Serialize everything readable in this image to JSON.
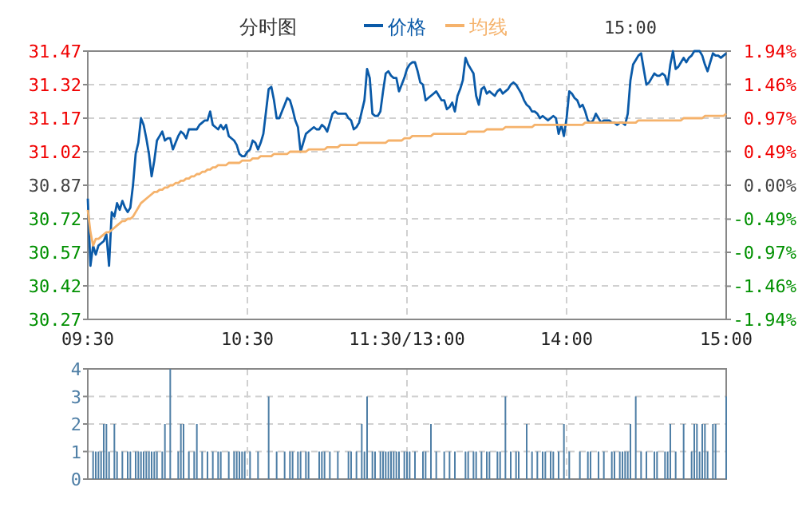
{
  "chart_data": [
    {
      "type": "line",
      "title": "分时图",
      "annotations": [
        "15:00"
      ],
      "legend": "top",
      "grid": true,
      "categories": [
        "09:30",
        null,
        null,
        null,
        null,
        null,
        null,
        null,
        null,
        null,
        null,
        null,
        null,
        null,
        null,
        null,
        null,
        null,
        null,
        null,
        null,
        null,
        null,
        null,
        null,
        null,
        null,
        null,
        null,
        null,
        null,
        null,
        null,
        null,
        null,
        null,
        null,
        null,
        null,
        null,
        null,
        null,
        null,
        null,
        null,
        null,
        null,
        null,
        null,
        null,
        null,
        null,
        null,
        null,
        null,
        null,
        null,
        null,
        null,
        null,
        "10:30",
        null,
        null,
        null,
        null,
        null,
        null,
        null,
        null,
        null,
        null,
        null,
        null,
        null,
        null,
        null,
        null,
        null,
        null,
        null,
        null,
        null,
        null,
        null,
        null,
        null,
        null,
        null,
        null,
        null,
        null,
        null,
        null,
        null,
        null,
        null,
        null,
        null,
        null,
        null,
        null,
        null,
        null,
        null,
        null,
        null,
        null,
        null,
        null,
        null,
        null,
        null,
        null,
        null,
        null,
        null,
        null,
        null,
        null,
        null,
        "11:30/13:00",
        null,
        null,
        null,
        null,
        null,
        null,
        null,
        null,
        null,
        null,
        null,
        null,
        null,
        null,
        null,
        null,
        null,
        null,
        null,
        null,
        null,
        null,
        null,
        null,
        null,
        null,
        null,
        null,
        null,
        null,
        null,
        null,
        null,
        null,
        null,
        null,
        null,
        null,
        null,
        null,
        null,
        null,
        null,
        null,
        null,
        null,
        null,
        null,
        null,
        null,
        null,
        null,
        null,
        null,
        null,
        null,
        null,
        null,
        null,
        "14:00",
        null,
        null,
        null,
        null,
        null,
        null,
        null,
        null,
        null,
        null,
        null,
        null,
        null,
        null,
        null,
        null,
        null,
        null,
        null,
        null,
        null,
        null,
        null,
        null,
        null,
        null,
        null,
        null,
        null,
        null,
        null,
        null,
        null,
        null,
        null,
        null,
        null,
        null,
        null,
        null,
        null,
        null,
        null,
        null,
        null,
        null,
        null,
        null,
        null,
        null,
        null,
        null,
        null,
        null,
        null,
        null,
        null,
        null,
        null,
        "15:00"
      ],
      "ylim": [
        30.27,
        31.47
      ],
      "yticks": [
        30.27,
        30.42,
        30.57,
        30.72,
        30.87,
        31.02,
        31.17,
        31.32,
        31.47
      ],
      "y2lim": [
        -1.94,
        1.94
      ],
      "y2ticks": [
        {
          "value": -1.94,
          "label": "-1.94%"
        },
        {
          "value": -1.46,
          "label": "-1.46%"
        },
        {
          "value": -0.97,
          "label": "-0.97%"
        },
        {
          "value": -0.49,
          "label": "-0.49%"
        },
        {
          "value": 0,
          "label": "0.00%"
        },
        {
          "value": 0.49,
          "label": "0.49%"
        },
        {
          "value": 0.97,
          "label": "0.97%"
        },
        {
          "value": 1.46,
          "label": "1.46%"
        },
        {
          "value": 1.94,
          "label": "1.94%"
        }
      ],
      "series": [
        {
          "name": "价格",
          "color": "#0a5aa8",
          "values": [
            30.81,
            30.51,
            30.6,
            30.56,
            30.6,
            30.61,
            30.62,
            30.65,
            30.51,
            30.75,
            30.73,
            30.79,
            30.76,
            30.8,
            30.77,
            30.75,
            30.77,
            30.87,
            31.01,
            31.06,
            31.17,
            31.14,
            31.08,
            31.01,
            30.91,
            30.98,
            31.07,
            31.09,
            31.11,
            31.07,
            31.08,
            31.08,
            31.03,
            31.06,
            31.09,
            31.11,
            31.1,
            31.08,
            31.12,
            31.12,
            31.12,
            31.12,
            31.14,
            31.15,
            31.16,
            31.16,
            31.2,
            31.14,
            31.13,
            31.12,
            31.14,
            31.12,
            31.14,
            31.09,
            31.08,
            31.07,
            31.05,
            31.01,
            31.0,
            31.0,
            31.02,
            31.03,
            31.07,
            31.06,
            31.03,
            31.06,
            31.1,
            31.2,
            31.3,
            31.31,
            31.25,
            31.17,
            31.17,
            31.2,
            31.23,
            31.26,
            31.25,
            31.21,
            31.16,
            31.13,
            31.02,
            31.06,
            31.1,
            31.11,
            31.12,
            31.13,
            31.12,
            31.12,
            31.14,
            31.13,
            31.11,
            31.15,
            31.19,
            31.2,
            31.19,
            31.19,
            31.19,
            31.19,
            31.17,
            31.16,
            31.12,
            31.13,
            31.15,
            31.2,
            31.25,
            31.39,
            31.35,
            31.19,
            31.18,
            31.18,
            31.2,
            31.29,
            31.37,
            31.38,
            31.36,
            31.35,
            31.35,
            31.29,
            31.32,
            31.35,
            31.39,
            31.41,
            31.42,
            31.42,
            31.38,
            31.33,
            31.32,
            31.25,
            31.26,
            31.27,
            31.28,
            31.29,
            31.27,
            31.25,
            31.25,
            31.21,
            31.22,
            31.24,
            31.2,
            31.27,
            31.3,
            31.34,
            31.44,
            31.41,
            31.39,
            31.37,
            31.27,
            31.23,
            31.3,
            31.31,
            31.28,
            31.29,
            31.28,
            31.27,
            31.29,
            31.3,
            31.28,
            31.29,
            31.3,
            31.32,
            31.33,
            31.32,
            31.3,
            31.28,
            31.25,
            31.23,
            31.22,
            31.2,
            31.2,
            31.19,
            31.17,
            31.18,
            31.17,
            31.16,
            31.17,
            31.18,
            31.17,
            31.1,
            31.14,
            31.09,
            31.17,
            31.29,
            31.28,
            31.26,
            31.25,
            31.22,
            31.23,
            31.2,
            31.16,
            31.15,
            31.16,
            31.19,
            31.17,
            31.15,
            31.16,
            31.16,
            31.16,
            31.15,
            31.15,
            31.14,
            31.15,
            31.15,
            31.14,
            31.19,
            31.34,
            31.41,
            31.43,
            31.45,
            31.46,
            31.39,
            31.32,
            31.33,
            31.35,
            31.37,
            31.36,
            31.36,
            31.37,
            31.36,
            31.32,
            31.41,
            31.47,
            31.39,
            31.4,
            31.42,
            31.44,
            31.42,
            31.44,
            31.45,
            31.47,
            31.47,
            31.47,
            31.45,
            31.41,
            31.38,
            31.42,
            31.46,
            31.45,
            31.45,
            31.44,
            31.45,
            31.46
          ]
        },
        {
          "name": "均线",
          "color": "#f5b26b",
          "values": [
            30.76,
            30.66,
            30.6,
            30.63,
            30.63,
            30.64,
            30.65,
            30.66,
            30.66,
            30.67,
            30.68,
            30.69,
            30.7,
            30.71,
            30.71,
            30.72,
            30.72,
            30.73,
            30.75,
            30.77,
            30.79,
            30.8,
            30.81,
            30.82,
            30.83,
            30.84,
            30.84,
            30.85,
            30.85,
            30.86,
            30.86,
            30.87,
            30.87,
            30.88,
            30.88,
            30.89,
            30.89,
            30.9,
            30.9,
            30.91,
            30.91,
            30.92,
            30.92,
            30.93,
            30.93,
            30.94,
            30.94,
            30.95,
            30.95,
            30.96,
            30.96,
            30.96,
            30.96,
            30.97,
            30.97,
            30.97,
            30.97,
            30.97,
            30.98,
            30.98,
            30.98,
            30.98,
            30.99,
            30.99,
            30.99,
            31.0,
            31.0,
            31.0,
            31.0,
            31.0,
            31.01,
            31.01,
            31.01,
            31.01,
            31.01,
            31.01,
            31.02,
            31.02,
            31.02,
            31.02,
            31.02,
            31.02,
            31.02,
            31.03,
            31.03,
            31.03,
            31.03,
            31.03,
            31.03,
            31.03,
            31.04,
            31.04,
            31.04,
            31.04,
            31.04,
            31.05,
            31.05,
            31.05,
            31.05,
            31.05,
            31.05,
            31.05,
            31.06,
            31.06,
            31.06,
            31.06,
            31.06,
            31.06,
            31.06,
            31.06,
            31.06,
            31.06,
            31.06,
            31.07,
            31.07,
            31.07,
            31.07,
            31.07,
            31.07,
            31.08,
            31.08,
            31.08,
            31.09,
            31.09,
            31.09,
            31.09,
            31.09,
            31.09,
            31.09,
            31.09,
            31.1,
            31.1,
            31.1,
            31.1,
            31.1,
            31.1,
            31.1,
            31.1,
            31.1,
            31.1,
            31.1,
            31.1,
            31.1,
            31.11,
            31.11,
            31.11,
            31.11,
            31.11,
            31.11,
            31.11,
            31.12,
            31.12,
            31.12,
            31.12,
            31.12,
            31.12,
            31.12,
            31.13,
            31.13,
            31.13,
            31.13,
            31.13,
            31.13,
            31.13,
            31.13,
            31.13,
            31.13,
            31.13,
            31.14,
            31.14,
            31.14,
            31.14,
            31.14,
            31.14,
            31.14,
            31.14,
            31.14,
            31.14,
            31.14,
            31.14,
            31.14,
            31.14,
            31.14,
            31.14,
            31.14,
            31.14,
            31.14,
            31.15,
            31.15,
            31.15,
            31.15,
            31.15,
            31.15,
            31.15,
            31.15,
            31.15,
            31.15,
            31.15,
            31.15,
            31.15,
            31.15,
            31.15,
            31.15,
            31.15,
            31.15,
            31.15,
            31.15,
            31.16,
            31.16,
            31.16,
            31.16,
            31.16,
            31.16,
            31.16,
            31.16,
            31.16,
            31.16,
            31.16,
            31.16,
            31.16,
            31.16,
            31.16,
            31.16,
            31.16,
            31.17,
            31.17,
            31.17,
            31.17,
            31.17,
            31.17,
            31.17,
            31.17,
            31.18,
            31.18,
            31.18,
            31.18,
            31.18,
            31.18,
            31.18,
            31.18,
            31.19
          ]
        }
      ]
    },
    {
      "type": "bar",
      "grid": true,
      "categories": [
        null,
        null,
        null,
        null,
        null,
        null,
        null,
        null,
        null,
        null,
        null,
        null,
        null,
        null,
        null,
        null,
        null,
        null,
        null,
        null,
        null,
        null,
        null,
        null,
        null,
        null,
        null,
        null,
        null,
        null,
        null,
        null,
        null,
        null,
        null,
        null,
        null,
        null,
        null,
        null,
        null,
        null,
        null,
        null,
        null,
        null,
        null,
        null,
        null,
        null,
        null,
        null,
        null,
        null,
        null,
        null,
        null,
        null,
        null,
        null,
        null,
        null,
        null,
        null,
        null,
        null,
        null,
        null,
        null,
        null,
        null,
        null,
        null,
        null,
        null,
        null,
        null,
        null,
        null,
        null,
        null,
        null,
        null,
        null,
        null,
        null,
        null,
        null,
        null,
        null,
        null,
        null,
        null,
        null,
        null,
        null,
        null,
        null,
        null,
        null,
        null,
        null,
        null,
        null,
        null,
        null,
        null,
        null,
        null,
        null,
        null,
        null,
        null,
        null,
        null,
        null,
        null,
        null,
        null,
        null,
        null,
        null,
        null,
        null,
        null,
        null,
        null,
        null,
        null,
        null,
        null,
        null,
        null,
        null,
        null,
        null,
        null,
        null,
        null,
        null,
        null,
        null,
        null,
        null,
        null,
        null,
        null,
        null,
        null,
        null,
        null,
        null,
        null,
        null,
        null,
        null,
        null,
        null,
        null,
        null,
        null,
        null,
        null,
        null,
        null,
        null,
        null,
        null,
        null,
        null,
        null,
        null,
        null,
        null,
        null,
        null,
        null,
        null,
        null,
        null,
        null,
        null,
        null,
        null,
        null,
        null,
        null,
        null,
        null,
        null,
        null,
        null,
        null,
        null,
        null,
        null,
        null,
        null,
        null,
        null,
        null,
        null,
        null,
        null,
        null,
        null,
        null,
        null,
        null,
        null,
        null,
        null,
        null,
        null,
        null,
        null,
        null,
        null,
        null,
        null,
        null,
        null,
        null,
        null,
        null,
        null,
        null,
        null,
        null,
        null,
        null,
        null,
        null,
        null,
        null,
        null,
        null,
        null,
        null,
        null,
        null
      ],
      "ylim": [
        0,
        4
      ],
      "yticks": [
        0,
        1,
        2,
        3,
        4
      ],
      "series": [
        {
          "color": "#4f7fa6",
          "values": [
            0,
            0,
            1,
            1,
            1,
            1,
            2,
            2,
            1,
            0,
            2,
            1,
            0,
            1,
            0,
            1,
            1,
            0,
            1,
            1,
            1,
            1,
            1,
            1,
            1,
            1,
            1,
            0,
            1,
            2,
            0,
            4,
            0,
            0,
            1,
            2,
            2,
            0,
            1,
            0,
            1,
            2,
            0,
            1,
            0,
            1,
            0,
            1,
            0,
            1,
            1,
            0,
            0,
            1,
            0,
            1,
            1,
            1,
            1,
            1,
            0,
            1,
            0,
            0,
            1,
            0,
            0,
            0,
            3,
            0,
            0,
            1,
            0,
            0,
            1,
            0,
            1,
            1,
            0,
            1,
            1,
            0,
            1,
            1,
            0,
            0,
            0,
            1,
            1,
            1,
            0,
            1,
            0,
            0,
            1,
            0,
            0,
            0,
            1,
            1,
            0,
            1,
            0,
            2,
            1,
            3,
            0,
            1,
            1,
            0,
            1,
            1,
            1,
            1,
            1,
            1,
            1,
            1,
            0,
            1,
            1,
            1,
            0,
            1,
            0,
            0,
            1,
            1,
            0,
            2,
            0,
            1,
            0,
            0,
            1,
            0,
            1,
            0,
            1,
            0,
            0,
            0,
            1,
            1,
            0,
            1,
            1,
            0,
            1,
            0,
            1,
            1,
            0,
            0,
            1,
            1,
            0,
            3,
            0,
            1,
            0,
            1,
            1,
            0,
            0,
            2,
            0,
            1,
            0,
            1,
            0,
            1,
            1,
            0,
            1,
            1,
            0,
            1,
            0,
            2,
            0,
            1,
            0,
            0,
            0,
            1,
            0,
            0,
            1,
            1,
            0,
            0,
            1,
            0,
            1,
            0,
            0,
            1,
            1,
            0,
            1,
            1,
            1,
            1,
            2,
            0,
            3,
            0,
            1,
            0,
            1,
            0,
            0,
            1,
            1,
            0,
            0,
            1,
            1,
            2,
            0,
            1,
            0,
            0,
            2,
            0,
            0,
            1,
            2,
            2,
            1,
            2,
            2,
            1,
            0,
            2,
            2,
            0,
            0,
            0,
            3
          ]
        }
      ]
    }
  ]
}
